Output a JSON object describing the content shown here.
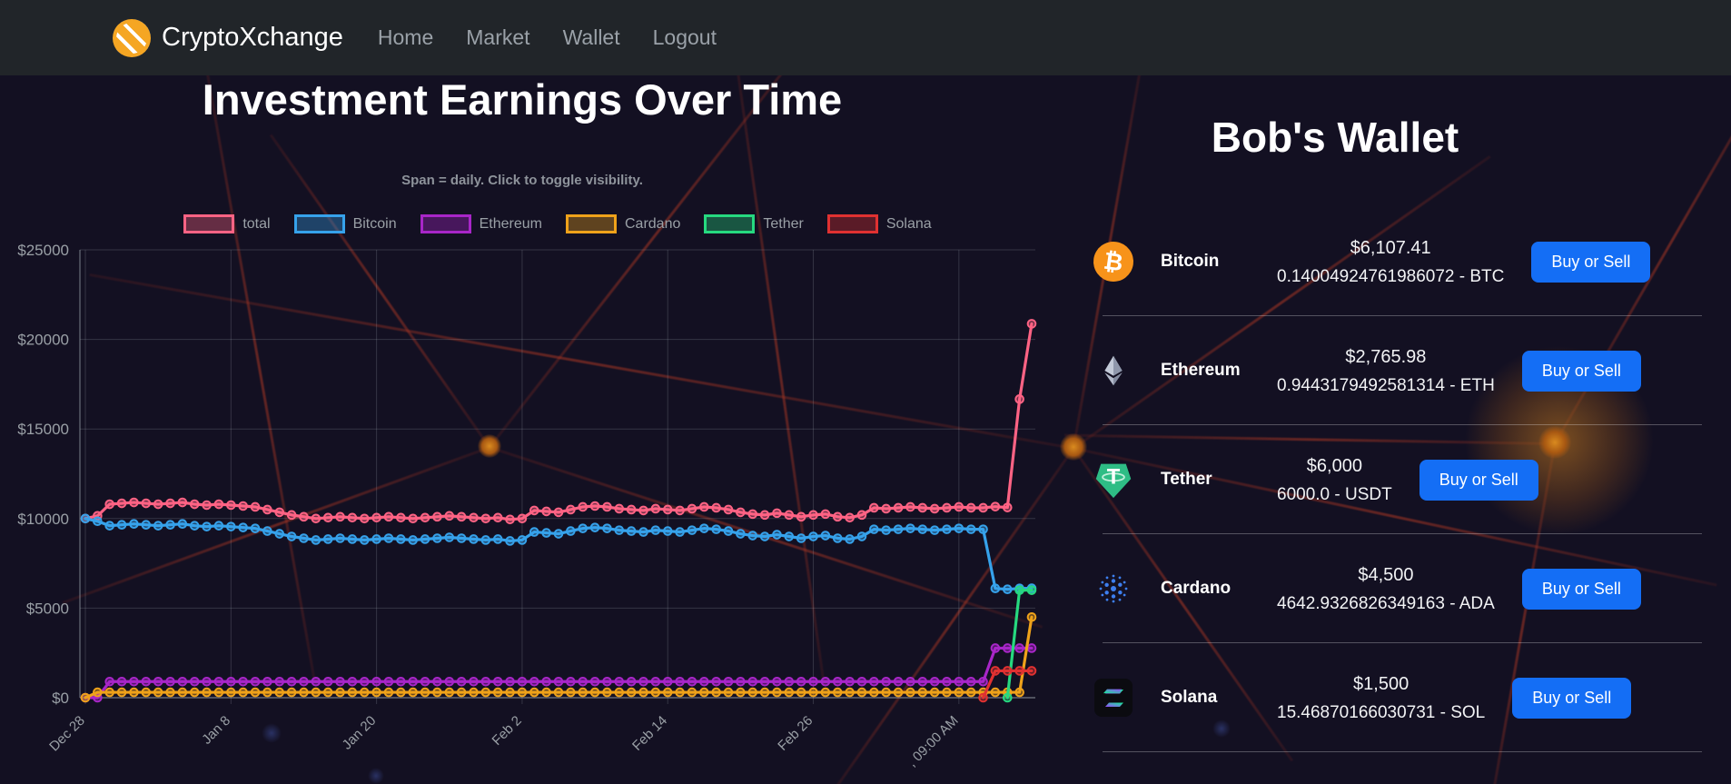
{
  "navbar": {
    "brand": "CryptoXchange",
    "items": [
      {
        "label": "Home"
      },
      {
        "label": "Market"
      },
      {
        "label": "Wallet"
      },
      {
        "label": "Logout"
      }
    ]
  },
  "chart": {
    "title": "Investment Earnings Over Time",
    "subtitle": "Span = daily. Click to toggle visibility."
  },
  "chart_data": {
    "type": "line",
    "title": "Investment Earnings Over Time",
    "xlabel": "",
    "ylabel": "",
    "ylim": [
      0,
      25000
    ],
    "grid": true,
    "legend_position": "top",
    "n_points": 79,
    "y_ticks": [
      "$25000",
      "$20000",
      "$15000",
      "$10000",
      "$5000",
      "$0"
    ],
    "y_tick_values": [
      25000,
      20000,
      15000,
      10000,
      5000,
      0
    ],
    "x_tick_labels": [
      "Dec 28",
      "Jan 8",
      "Jan 20",
      "Feb 2",
      "Feb 14",
      "Feb 26",
      ", 09:00 AM"
    ],
    "x_tick_indices": [
      0,
      12,
      24,
      36,
      48,
      60,
      72
    ],
    "series": [
      {
        "name": "total",
        "color": "#ff6384",
        "values": [
          10000,
          10150,
          10800,
          10850,
          10900,
          10850,
          10800,
          10850,
          10900,
          10800,
          10750,
          10800,
          10750,
          10700,
          10650,
          10500,
          10350,
          10200,
          10100,
          10000,
          10050,
          10100,
          10050,
          10000,
          10050,
          10100,
          10050,
          10000,
          10050,
          10100,
          10150,
          10100,
          10050,
          10000,
          10050,
          9950,
          10000,
          10450,
          10400,
          10350,
          10500,
          10650,
          10700,
          10650,
          10550,
          10500,
          10450,
          10550,
          10500,
          10450,
          10550,
          10650,
          10600,
          10500,
          10350,
          10250,
          10200,
          10300,
          10200,
          10100,
          10200,
          10250,
          10100,
          10050,
          10200,
          10600,
          10550,
          10600,
          10650,
          10600,
          10550,
          10600,
          10650,
          10600,
          10600,
          10666,
          10616,
          16666,
          20873
        ]
      },
      {
        "name": "Bitcoin",
        "color": "#36a2eb",
        "values": [
          10000,
          9850,
          9600,
          9650,
          9700,
          9650,
          9600,
          9650,
          9700,
          9600,
          9550,
          9600,
          9550,
          9500,
          9450,
          9300,
          9150,
          9000,
          8900,
          8800,
          8850,
          8900,
          8850,
          8800,
          8850,
          8900,
          8850,
          8800,
          8850,
          8900,
          8950,
          8900,
          8850,
          8800,
          8850,
          8750,
          8800,
          9250,
          9200,
          9150,
          9300,
          9450,
          9500,
          9450,
          9350,
          9300,
          9250,
          9350,
          9300,
          9250,
          9350,
          9450,
          9400,
          9300,
          9150,
          9050,
          9000,
          9100,
          9000,
          8900,
          9000,
          9050,
          8900,
          8850,
          9000,
          9400,
          9350,
          9400,
          9450,
          9400,
          9350,
          9400,
          9450,
          9400,
          9400,
          6100,
          6050,
          6100,
          6107
        ]
      },
      {
        "name": "Ethereum",
        "color": "#a826c8",
        "values": [
          0,
          0,
          900,
          900,
          900,
          900,
          900,
          900,
          900,
          900,
          900,
          900,
          900,
          900,
          900,
          900,
          900,
          900,
          900,
          900,
          900,
          900,
          900,
          900,
          900,
          900,
          900,
          900,
          900,
          900,
          900,
          900,
          900,
          900,
          900,
          900,
          900,
          900,
          900,
          900,
          900,
          900,
          900,
          900,
          900,
          900,
          900,
          900,
          900,
          900,
          900,
          900,
          900,
          900,
          900,
          900,
          900,
          900,
          900,
          900,
          900,
          900,
          900,
          900,
          900,
          900,
          900,
          900,
          900,
          900,
          900,
          900,
          900,
          900,
          900,
          2766,
          2766,
          2766,
          2766
        ]
      },
      {
        "name": "Cardano",
        "color": "#efa21a",
        "values": [
          0,
          300,
          300,
          300,
          300,
          300,
          300,
          300,
          300,
          300,
          300,
          300,
          300,
          300,
          300,
          300,
          300,
          300,
          300,
          300,
          300,
          300,
          300,
          300,
          300,
          300,
          300,
          300,
          300,
          300,
          300,
          300,
          300,
          300,
          300,
          300,
          300,
          300,
          300,
          300,
          300,
          300,
          300,
          300,
          300,
          300,
          300,
          300,
          300,
          300,
          300,
          300,
          300,
          300,
          300,
          300,
          300,
          300,
          300,
          300,
          300,
          300,
          300,
          300,
          300,
          300,
          300,
          300,
          300,
          300,
          300,
          300,
          300,
          300,
          300,
          300,
          300,
          300,
          4500
        ]
      },
      {
        "name": "Tether",
        "color": "#26d97f",
        "values": [
          null,
          null,
          null,
          null,
          null,
          null,
          null,
          null,
          null,
          null,
          null,
          null,
          null,
          null,
          null,
          null,
          null,
          null,
          null,
          null,
          null,
          null,
          null,
          null,
          null,
          null,
          null,
          null,
          null,
          null,
          null,
          null,
          null,
          null,
          null,
          null,
          null,
          null,
          null,
          null,
          null,
          null,
          null,
          null,
          null,
          null,
          null,
          null,
          null,
          null,
          null,
          null,
          null,
          null,
          null,
          null,
          null,
          null,
          null,
          null,
          null,
          null,
          null,
          null,
          null,
          null,
          null,
          null,
          null,
          null,
          null,
          null,
          null,
          null,
          null,
          null,
          0,
          6000,
          6000
        ]
      },
      {
        "name": "Solana",
        "color": "#e03131",
        "values": [
          null,
          null,
          null,
          null,
          null,
          null,
          null,
          null,
          null,
          null,
          null,
          null,
          null,
          null,
          null,
          null,
          null,
          null,
          null,
          null,
          null,
          null,
          null,
          null,
          null,
          null,
          null,
          null,
          null,
          null,
          null,
          null,
          null,
          null,
          null,
          null,
          null,
          null,
          null,
          null,
          null,
          null,
          null,
          null,
          null,
          null,
          null,
          null,
          null,
          null,
          null,
          null,
          null,
          null,
          null,
          null,
          null,
          null,
          null,
          null,
          null,
          null,
          null,
          null,
          null,
          null,
          null,
          null,
          null,
          null,
          null,
          null,
          null,
          null,
          0,
          1500,
          1500,
          1500,
          1500
        ]
      }
    ]
  },
  "wallet": {
    "title": "Bob's Wallet",
    "button_label": "Buy or Sell",
    "rows": [
      {
        "name": "Bitcoin",
        "usd": "$6,107.41",
        "amount": "0.14004924761986072 - BTC",
        "button": "Buy or Sell"
      },
      {
        "name": "Ethereum",
        "usd": "$2,765.98",
        "amount": "0.9443179492581314 - ETH",
        "button": "Buy or Sell"
      },
      {
        "name": "Tether",
        "usd": "$6,000",
        "amount": "6000.0 - USDT",
        "button": "Buy or Sell"
      },
      {
        "name": "Cardano",
        "usd": "$4,500",
        "amount": "4642.9326826349163 - ADA",
        "button": "Buy or Sell"
      },
      {
        "name": "Solana",
        "usd": "$1,500",
        "amount": "15.46870166030731 - SOL",
        "button": "Buy or Sell"
      }
    ]
  }
}
